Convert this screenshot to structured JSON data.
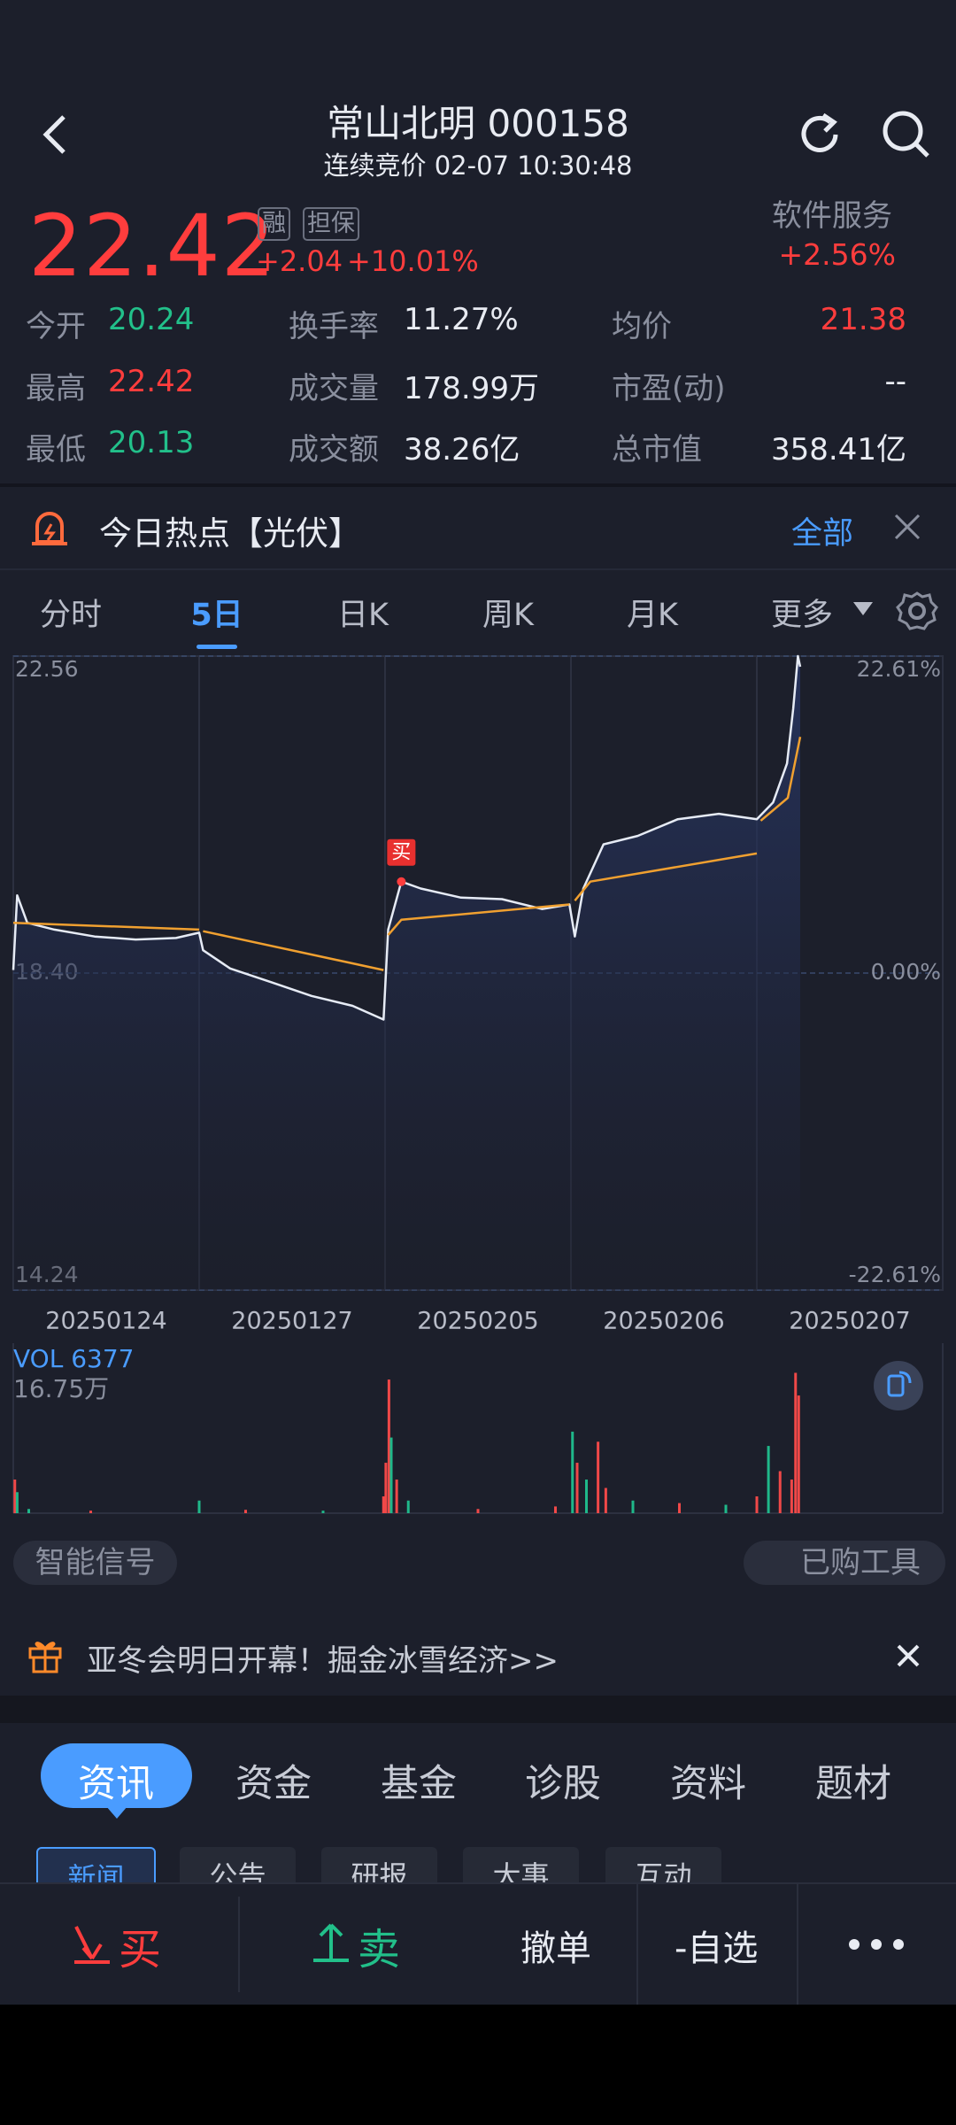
{
  "header": {
    "title": "常山北明 000158",
    "subtitle": "连续竞价 02-07 10:30:48"
  },
  "quote": {
    "price": "22.42",
    "badges": [
      "融",
      "担保"
    ],
    "change": "+2.04",
    "change_pct": "+10.01%",
    "sector": "软件服务",
    "sector_pct": "+2.56%"
  },
  "stats": [
    {
      "label": "今开",
      "value": "20.24"
    },
    {
      "label": "换手率",
      "value": "11.27%"
    },
    {
      "label": "均价",
      "value": "21.38"
    },
    {
      "label": "最高",
      "value": "22.42"
    },
    {
      "label": "成交量",
      "value": "178.99万"
    },
    {
      "label": "市盈(动)",
      "value": "--"
    },
    {
      "label": "最低",
      "value": "20.13"
    },
    {
      "label": "成交额",
      "value": "38.26亿"
    },
    {
      "label": "总市值",
      "value": "358.41亿"
    }
  ],
  "hot": {
    "label": "今日热点【光伏】",
    "action": "全部"
  },
  "period_tabs": [
    "分时",
    "5日",
    "日K",
    "周K",
    "月K",
    "更多"
  ],
  "chart_data": [
    {
      "type": "line",
      "categories": [
        "20250124",
        "20250127",
        "20250205",
        "20250206",
        "20250207"
      ],
      "xlim": [
        0,
        1200
      ],
      "ylim": [
        14.24,
        22.56
      ],
      "yticks": [
        22.56,
        {
          "value": 18.4,
          "label": "18.40"
        },
        14.24
      ],
      "y2lim": [
        -22.61,
        22.61
      ],
      "y2ticks": [
        {
          "value": 22.61,
          "label": "22.61%"
        },
        {
          "value": 0,
          "label": "0.00%"
        },
        {
          "value": -22.61,
          "label": "-22.61%"
        }
      ],
      "series": [
        {
          "color": "#e6ebf5",
          "x": [
            0,
            5,
            18,
            53,
            105,
            158,
            210,
            240,
            245,
            280,
            333,
            385,
            438,
            478,
            484,
            501,
            526,
            578,
            631,
            683,
            718,
            725,
            736,
            762,
            806,
            858,
            911,
            960,
            981,
            999,
            1007,
            1013,
            1016
          ],
          "values": [
            18.44,
            19.42,
            19.06,
            18.97,
            18.88,
            18.84,
            18.86,
            18.93,
            18.7,
            18.46,
            18.28,
            18.1,
            17.97,
            17.79,
            18.97,
            19.6,
            19.51,
            19.39,
            19.37,
            19.24,
            19.3,
            18.88,
            19.51,
            20.09,
            20.2,
            20.42,
            20.49,
            20.42,
            20.64,
            21.15,
            21.87,
            22.56,
            22.42
          ]
        },
        {
          "color": "#f0a030",
          "x": [
            0,
            240,
            242,
            245,
            478,
            481,
            484,
            501,
            718,
            722,
            725,
            745,
            960,
            963,
            965,
            1000,
            1016
          ],
          "values": [
            19.06,
            18.97,
            null,
            18.95,
            18.44,
            null,
            18.9,
            19.1,
            19.3,
            null,
            19.35,
            19.6,
            19.97,
            null,
            20.4,
            20.7,
            21.5
          ]
        }
      ],
      "buy_marker": {
        "label": "买",
        "x": 501,
        "value": 19.6
      }
    },
    {
      "type": "bar",
      "annotation": "VOL 6377",
      "xlim": [
        0,
        1200
      ],
      "ylim": [
        0,
        167500
      ],
      "yticks": [
        {
          "value": 167500,
          "label": "16.75万"
        }
      ],
      "x": [
        2,
        5,
        20,
        100,
        240,
        300,
        400,
        478,
        481,
        485,
        488,
        495,
        510,
        600,
        700,
        722,
        728,
        740,
        755,
        765,
        800,
        860,
        920,
        960,
        975,
        990,
        1005,
        1010,
        1014
      ],
      "values": [
        40000,
        25000,
        5000,
        3000,
        15000,
        4000,
        3000,
        20000,
        60000,
        159000,
        90000,
        40000,
        15000,
        5000,
        8000,
        97000,
        60000,
        40000,
        85000,
        30000,
        15000,
        12000,
        10000,
        20000,
        80000,
        50000,
        40000,
        167000,
        140000
      ],
      "colors": [
        "#f04848",
        "#1fb88a",
        "#1fb88a",
        "#f04848",
        "#1fb88a",
        "#f04848",
        "#1fb88a",
        "#f04848",
        "#f04848",
        "#f04848",
        "#1fb88a",
        "#f04848",
        "#1fb88a",
        "#f04848",
        "#f04848",
        "#1fb88a",
        "#f04848",
        "#1fb88a",
        "#f04848",
        "#f04848",
        "#1fb88a",
        "#f04848",
        "#1fb88a",
        "#f04848",
        "#1fb88a",
        "#f04848",
        "#f04848",
        "#f04848",
        "#f04848"
      ]
    }
  ],
  "tools": {
    "signal": "智能信号",
    "bought": "已购工具"
  },
  "banner": "亚冬会明日开幕！掘金冰雪经济>>",
  "info_tabs": [
    "资讯",
    "资金",
    "基金",
    "诊股",
    "资料",
    "题材"
  ],
  "sub_tabs": [
    "新闻",
    "公告",
    "研报",
    "大事",
    "互动"
  ],
  "bottom_bar": {
    "buy": "买",
    "sell": "卖",
    "cancel": "撤单",
    "watch": "-自选"
  }
}
